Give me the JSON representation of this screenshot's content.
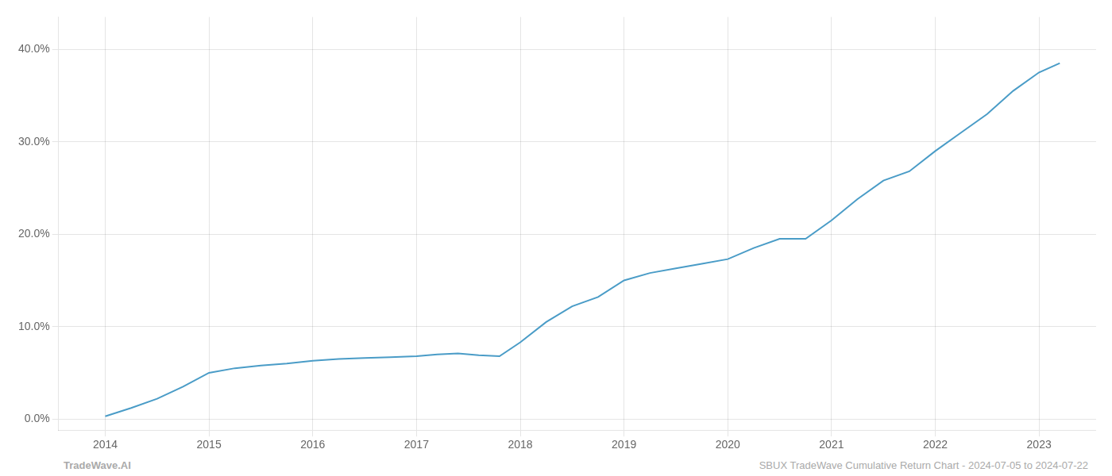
{
  "chart_data": {
    "type": "line",
    "x": [
      2014.0,
      2014.25,
      2014.5,
      2014.75,
      2015.0,
      2015.25,
      2015.5,
      2015.75,
      2016.0,
      2016.25,
      2016.5,
      2016.75,
      2017.0,
      2017.2,
      2017.4,
      2017.6,
      2017.8,
      2018.0,
      2018.25,
      2018.5,
      2018.75,
      2019.0,
      2019.25,
      2019.5,
      2019.75,
      2020.0,
      2020.25,
      2020.5,
      2020.75,
      2021.0,
      2021.25,
      2021.5,
      2021.75,
      2022.0,
      2022.25,
      2022.5,
      2022.75,
      2023.0,
      2023.2
    ],
    "values": [
      0.003,
      0.012,
      0.022,
      0.035,
      0.05,
      0.055,
      0.058,
      0.06,
      0.063,
      0.065,
      0.066,
      0.067,
      0.068,
      0.07,
      0.071,
      0.069,
      0.068,
      0.083,
      0.105,
      0.122,
      0.132,
      0.15,
      0.158,
      0.163,
      0.168,
      0.173,
      0.185,
      0.195,
      0.195,
      0.215,
      0.238,
      0.258,
      0.268,
      0.29,
      0.31,
      0.33,
      0.355,
      0.375,
      0.385
    ],
    "color": "#4a9cc7",
    "xlim": [
      2013.55,
      2023.55
    ],
    "xticks": [
      2014,
      2015,
      2016,
      2017,
      2018,
      2019,
      2020,
      2021,
      2022,
      2023
    ],
    "ylim": [
      -0.012,
      0.435
    ],
    "yticks": [
      {
        "value": 0.0,
        "label": "0.0%"
      },
      {
        "value": 0.1,
        "label": "10.0%"
      },
      {
        "value": 0.2,
        "label": "20.0%"
      },
      {
        "value": 0.3,
        "label": "30.0%"
      },
      {
        "value": 0.4,
        "label": "40.0%"
      }
    ],
    "grid": true,
    "annotations": [
      "TradeWave.AI",
      "SBUX TradeWave Cumulative Return Chart - 2024-07-05 to 2024-07-22"
    ]
  }
}
